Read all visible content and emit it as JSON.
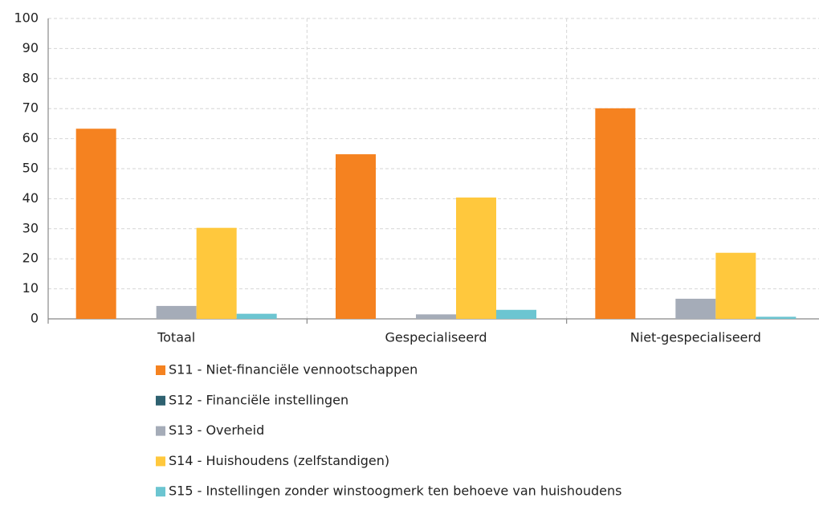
{
  "chart_data": {
    "type": "bar",
    "categories": [
      "Totaal",
      "Gespecialiseerd",
      "Niet-gespecialiseerd"
    ],
    "series": [
      {
        "name": "S11 - Niet-financiële vennootschappen",
        "color": "#f58220",
        "values": [
          63.3,
          54.8,
          70.1
        ]
      },
      {
        "name": "S12 - Financiële instellingen",
        "color": "#2e6170",
        "values": [
          0,
          0,
          0
        ]
      },
      {
        "name": "S13 - Overheid",
        "color": "#a5acb8",
        "values": [
          4.3,
          1.5,
          6.7
        ]
      },
      {
        "name": "S14 - Huishoudens (zelfstandigen)",
        "color": "#ffc83d",
        "values": [
          30.3,
          40.4,
          22.0
        ]
      },
      {
        "name": "S15 - Instellingen zonder winstoogmerk ten behoeve van huishoudens",
        "color": "#6cc5d1",
        "values": [
          1.7,
          3.0,
          0.7
        ]
      }
    ],
    "ylim": [
      0,
      100
    ],
    "yticks": [
      0,
      10,
      20,
      30,
      40,
      50,
      60,
      70,
      80,
      90,
      100
    ],
    "grid": true,
    "legend": "bottom"
  }
}
